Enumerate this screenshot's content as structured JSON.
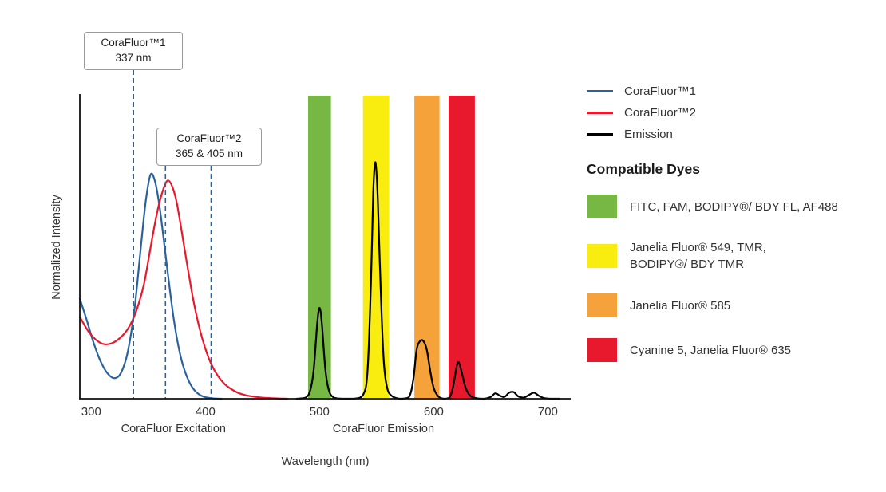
{
  "chart_data": {
    "type": "line",
    "title": "",
    "xlabel": "Wavelength (nm)",
    "ylabel": "Normalized Intensity",
    "xlim": [
      290,
      720
    ],
    "ylim": [
      0,
      1.0
    ],
    "xticks": [
      300,
      400,
      500,
      600,
      700
    ],
    "grid": false,
    "legend_position": "right",
    "marker_color": "#2a639c",
    "axis_section_labels": [
      {
        "label": "CoraFluor Excitation",
        "x_nm": 372
      },
      {
        "label": "CoraFluor Emission",
        "x_nm": 556
      }
    ],
    "bands": [
      {
        "name": "FITC, FAM, BODIPY®/ BDY FL, AF488",
        "x0": 490,
        "x1": 510,
        "color": "#76b843"
      },
      {
        "name": "Janelia Fluor® 549, TMR, BODIPY®/ BDY TMR",
        "x0": 538,
        "x1": 561,
        "color": "#f8ed0f"
      },
      {
        "name": "Janelia Fluor® 585",
        "x0": 583,
        "x1": 605,
        "color": "#f5a23b"
      },
      {
        "name": "Cyanine 5, Janelia Fluor® 635",
        "x0": 613,
        "x1": 636,
        "color": "#e8192c"
      }
    ],
    "dashed_markers": [
      {
        "x_nm": 337,
        "callout_index": 0
      },
      {
        "x_nm": 365,
        "callout_index": 1
      },
      {
        "x_nm": 405,
        "callout_index": 1
      }
    ],
    "series": [
      {
        "name": "CoraFluor™1",
        "color": "#2a639c",
        "points": [
          [
            290,
            0.33
          ],
          [
            296,
            0.26
          ],
          [
            302,
            0.185
          ],
          [
            308,
            0.125
          ],
          [
            314,
            0.085
          ],
          [
            320,
            0.068
          ],
          [
            326,
            0.085
          ],
          [
            332,
            0.155
          ],
          [
            338,
            0.3
          ],
          [
            344,
            0.52
          ],
          [
            348,
            0.66
          ],
          [
            352,
            0.74
          ],
          [
            356,
            0.715
          ],
          [
            360,
            0.63
          ],
          [
            364,
            0.51
          ],
          [
            368,
            0.385
          ],
          [
            372,
            0.27
          ],
          [
            376,
            0.18
          ],
          [
            380,
            0.115
          ],
          [
            385,
            0.062
          ],
          [
            390,
            0.03
          ],
          [
            395,
            0.013
          ],
          [
            400,
            0.005
          ],
          [
            407,
            0.001
          ],
          [
            414,
            0
          ]
        ]
      },
      {
        "name": "CoraFluor™2",
        "color": "#e8192c",
        "points": [
          [
            290,
            0.27
          ],
          [
            297,
            0.225
          ],
          [
            304,
            0.195
          ],
          [
            311,
            0.18
          ],
          [
            318,
            0.183
          ],
          [
            325,
            0.2
          ],
          [
            332,
            0.23
          ],
          [
            339,
            0.285
          ],
          [
            346,
            0.375
          ],
          [
            352,
            0.5
          ],
          [
            358,
            0.62
          ],
          [
            363,
            0.69
          ],
          [
            367,
            0.72
          ],
          [
            371,
            0.7
          ],
          [
            375,
            0.645
          ],
          [
            380,
            0.535
          ],
          [
            385,
            0.42
          ],
          [
            390,
            0.315
          ],
          [
            395,
            0.23
          ],
          [
            400,
            0.165
          ],
          [
            405,
            0.115
          ],
          [
            411,
            0.075
          ],
          [
            417,
            0.048
          ],
          [
            423,
            0.031
          ],
          [
            429,
            0.019
          ],
          [
            436,
            0.011
          ],
          [
            444,
            0.006
          ],
          [
            452,
            0.003
          ],
          [
            462,
            0.001
          ],
          [
            472,
            0
          ]
        ]
      },
      {
        "name": "Emission",
        "color": "#000000",
        "points": [
          [
            480,
            0
          ],
          [
            488,
            0.004
          ],
          [
            492,
            0.03
          ],
          [
            495,
            0.1
          ],
          [
            498,
            0.25
          ],
          [
            500,
            0.3
          ],
          [
            502,
            0.25
          ],
          [
            505,
            0.1
          ],
          [
            508,
            0.03
          ],
          [
            512,
            0.005
          ],
          [
            520,
            0
          ],
          [
            530,
            0
          ],
          [
            538,
            0.012
          ],
          [
            542,
            0.09
          ],
          [
            545,
            0.38
          ],
          [
            547,
            0.68
          ],
          [
            549,
            0.78
          ],
          [
            551,
            0.66
          ],
          [
            553,
            0.42
          ],
          [
            556,
            0.14
          ],
          [
            559,
            0.04
          ],
          [
            563,
            0.01
          ],
          [
            570,
            0
          ],
          [
            578,
            0.004
          ],
          [
            582,
            0.06
          ],
          [
            585,
            0.16
          ],
          [
            588,
            0.19
          ],
          [
            591,
            0.19
          ],
          [
            594,
            0.16
          ],
          [
            597,
            0.09
          ],
          [
            600,
            0.035
          ],
          [
            604,
            0.008
          ],
          [
            609,
            0
          ],
          [
            614,
            0.005
          ],
          [
            617,
            0.04
          ],
          [
            620,
            0.105
          ],
          [
            622,
            0.12
          ],
          [
            625,
            0.08
          ],
          [
            628,
            0.035
          ],
          [
            632,
            0.01
          ],
          [
            637,
            0.002
          ],
          [
            644,
            0
          ],
          [
            650,
            0.006
          ],
          [
            654,
            0.018
          ],
          [
            658,
            0.01
          ],
          [
            662,
            0.006
          ],
          [
            666,
            0.02
          ],
          [
            670,
            0.022
          ],
          [
            674,
            0.008
          ],
          [
            679,
            0.004
          ],
          [
            684,
            0.014
          ],
          [
            688,
            0.02
          ],
          [
            692,
            0.01
          ],
          [
            696,
            0.003
          ],
          [
            702,
            0
          ],
          [
            710,
            0
          ]
        ]
      }
    ]
  },
  "annotations": [
    {
      "title": "CoraFluor™1",
      "value": "337 nm"
    },
    {
      "title": "CoraFluor™2",
      "value": "365 & 405 nm"
    }
  ],
  "legend": {
    "series": [
      {
        "label": "CoraFluor™1",
        "color": "#2a639c"
      },
      {
        "label": "CoraFluor™2",
        "color": "#e8192c"
      },
      {
        "label": "Emission",
        "color": "#000000"
      }
    ],
    "dyes_heading": "Compatible Dyes",
    "dyes": [
      {
        "label": "FITC, FAM, BODIPY®/ BDY FL, AF488",
        "color": "#76b843"
      },
      {
        "label": "Janelia Fluor® 549, TMR,\nBODIPY®/ BDY TMR",
        "color": "#f8ed0f"
      },
      {
        "label": "Janelia Fluor® 585",
        "color": "#f5a23b"
      },
      {
        "label": "Cyanine 5, Janelia Fluor® 635",
        "color": "#e8192c"
      }
    ]
  }
}
